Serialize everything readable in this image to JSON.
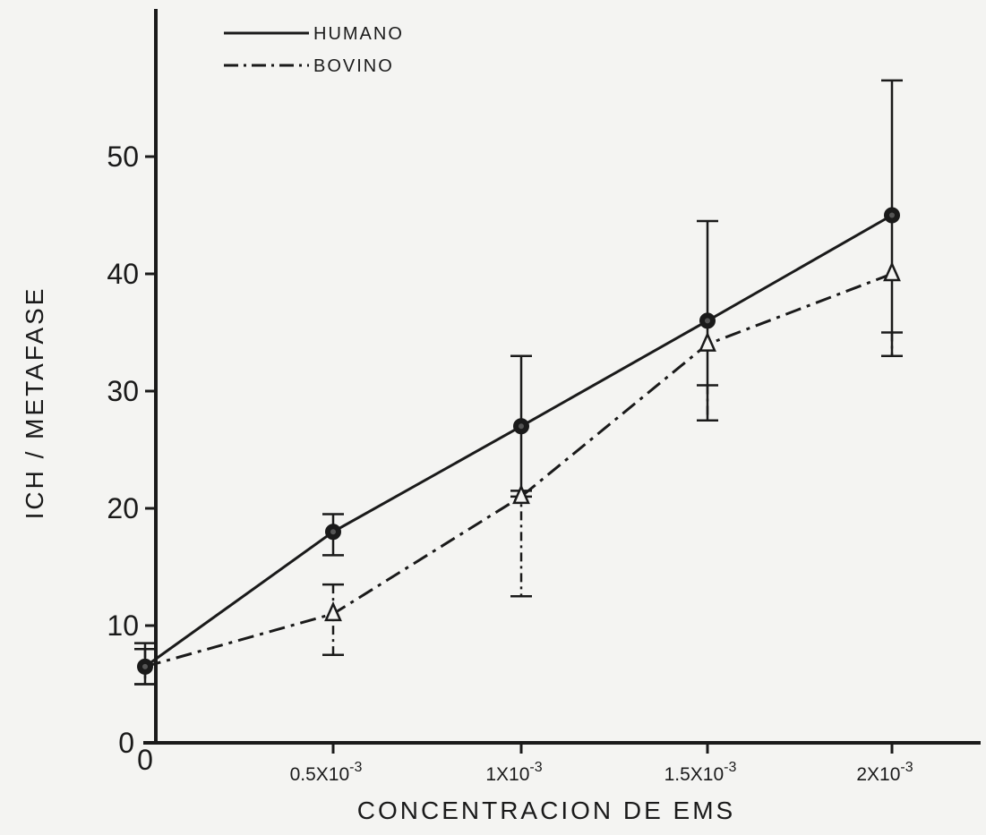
{
  "chart_data": {
    "type": "line",
    "xlabel": "CONCENTRACION  DE  EMS",
    "ylabel": "ICH / METAFASE",
    "x_categories": [
      "0",
      "0.5X10",
      "1X10",
      "1.5X10",
      "2X10"
    ],
    "x_category_exponents": [
      "",
      "-3",
      "-3",
      "-3",
      "-3"
    ],
    "y_ticks": [
      0,
      10,
      20,
      30,
      40,
      50
    ],
    "ylim": [
      0,
      60
    ],
    "grid": false,
    "legend_position": "top-left",
    "series": [
      {
        "name": "HUMANO",
        "line_style": "solid",
        "marker": "filled-circle",
        "values": [
          6.5,
          18,
          27,
          36,
          45
        ],
        "error_low": [
          5,
          16,
          21,
          27.5,
          33
        ],
        "error_high": [
          8.5,
          19.5,
          33,
          44.5,
          56.5
        ]
      },
      {
        "name": "BOVINO",
        "line_style": "dash-dot",
        "marker": "open-triangle",
        "values": [
          6.5,
          11,
          21,
          34,
          40
        ],
        "error_low": [
          5,
          7.5,
          12.5,
          27.5,
          33
        ],
        "error_high": [
          8,
          13.5,
          21.5,
          30.5,
          35
        ]
      }
    ],
    "colors": {
      "ink": "#1a1a1a",
      "paper": "#f4f4f2"
    }
  }
}
